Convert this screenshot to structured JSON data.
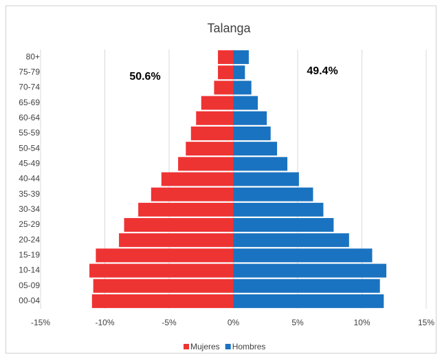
{
  "chart_data": {
    "type": "pyramid",
    "title": "Talanga",
    "categories": [
      "80+",
      "75-79",
      "70-74",
      "65-69",
      "60-64",
      "55-59",
      "50-54",
      "45-49",
      "40-44",
      "35-39",
      "30-34",
      "25-29",
      "20-24",
      "15-19",
      "10-14",
      "05-09",
      "00-04"
    ],
    "series": [
      {
        "name": "Mujeres",
        "color": "#ee3333",
        "values": [
          -1.2,
          -1.2,
          -1.5,
          -2.5,
          -2.9,
          -3.3,
          -3.7,
          -4.3,
          -5.6,
          -6.4,
          -7.4,
          -8.5,
          -8.9,
          -10.7,
          -11.2,
          -10.9,
          -11.0
        ]
      },
      {
        "name": "Hombres",
        "color": "#1a73c0",
        "values": [
          1.2,
          0.9,
          1.4,
          1.9,
          2.6,
          2.9,
          3.4,
          4.2,
          5.1,
          6.2,
          7.0,
          7.8,
          9.0,
          10.8,
          11.9,
          11.4,
          11.7
        ]
      }
    ],
    "xlim": [
      -15,
      15
    ],
    "xticks": [
      {
        "value": -15,
        "label": "-15%"
      },
      {
        "value": -10,
        "label": "-10%"
      },
      {
        "value": -5,
        "label": "-5%"
      },
      {
        "value": 0,
        "label": "0%"
      },
      {
        "value": 5,
        "label": "5%"
      },
      {
        "value": 10,
        "label": "10%"
      },
      {
        "value": 15,
        "label": "15%"
      }
    ],
    "grid": true,
    "legend": "bottom",
    "annotations": [
      {
        "text": "50.6%"
      },
      {
        "text": "49.4%"
      }
    ]
  }
}
